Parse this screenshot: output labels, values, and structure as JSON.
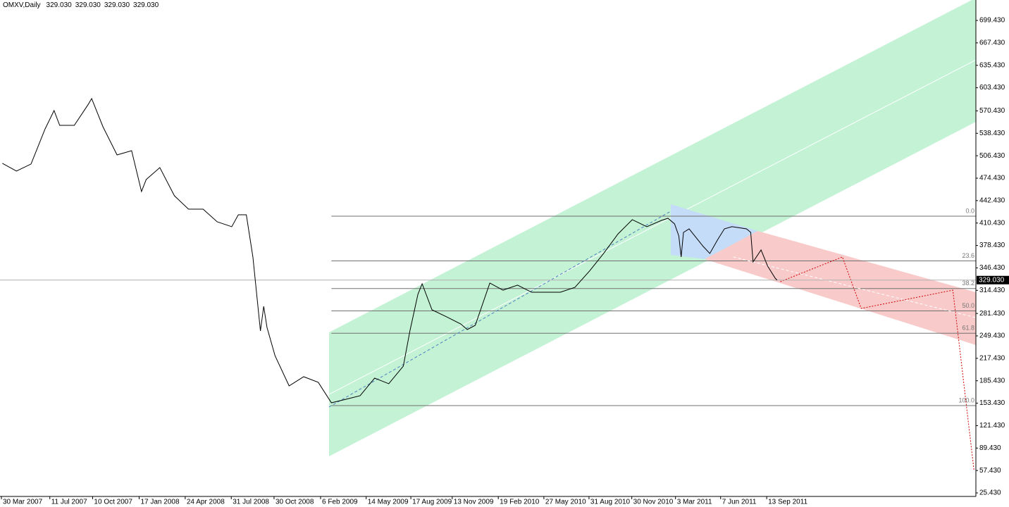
{
  "chart_data": {
    "type": "line",
    "title": "OMXV,Daily",
    "last_bar": [
      {
        "value": 329.03,
        "label": "329.030"
      },
      {
        "value": 329.03,
        "label": "329.030"
      },
      {
        "value": 329.03,
        "label": "329.030"
      },
      {
        "value": 329.03,
        "label": "329.030"
      }
    ],
    "current_price": {
      "value": 329.03,
      "label": "329.030"
    },
    "color": "#000000",
    "x": [
      "1 Apr 2007",
      "1 May 2007",
      "1 Jun 2007",
      "1 Jul 2007",
      "20 Jul 2007",
      "1 Aug 2007",
      "1 Sep 2007",
      "1 Oct 2007",
      "8 Oct 2007",
      "1 Nov 2007",
      "1 Dec 2007",
      "1 Jan 2008",
      "22 Jan 2008",
      "1 Feb 2008",
      "1 Mar 2008",
      "1 Apr 2008",
      "1 May 2008",
      "1 Jun 2008",
      "1 Jul 2008",
      "1 Aug 2008",
      "15 Aug 2008",
      "1 Sep 2008",
      "15 Sep 2008",
      "1 Oct 2008",
      "8 Oct 2008",
      "15 Oct 2008",
      "1 Nov 2008",
      "1 Dec 2008",
      "1 Jan 2009",
      "1 Feb 2009",
      "1 Mar 2009",
      "1 Apr 2009",
      "1 May 2009",
      "1 Jun 2009",
      "1 Jul 2009",
      "1 Aug 2009",
      "15 Aug 2009",
      "1 Sep 2009",
      "10 Sep 2009",
      "1 Oct 2009",
      "1 Nov 2009",
      "1 Dec 2009",
      "15 Dec 2009",
      "1 Jan 2010",
      "1 Feb 2010",
      "1 Mar 2010",
      "1 Apr 2010",
      "1 May 2010",
      "1 Jun 2010",
      "1 Jul 2010",
      "1 Aug 2010",
      "1 Sep 2010",
      "1 Oct 2010",
      "1 Nov 2010",
      "1 Dec 2010",
      "1 Jan 2011",
      "1 Feb 2011",
      "15 Feb 2011",
      "1 Mar 2011",
      "10 Mar 2011",
      "15 Mar 2011",
      "20 Mar 2011",
      "1 Apr 2011",
      "1 May 2011",
      "15 May 2011",
      "1 Jun 2011",
      "15 Jun 2011",
      "1 Jul 2011",
      "1 Aug 2011",
      "10 Aug 2011",
      "15 Aug 2011",
      "1 Sep 2011",
      "15 Sep 2011",
      "1 Oct 2011",
      "5 Oct 2011"
    ],
    "values": [
      495.6,
      484.5,
      494.6,
      544.8,
      570.9,
      549.8,
      549.8,
      580.0,
      588.0,
      547.8,
      507.6,
      513.6,
      455.4,
      472.5,
      489.5,
      449.3,
      430.3,
      430.3,
      412.2,
      405.2,
      422.2,
      422.2,
      362.0,
      256.5,
      291.6,
      261.5,
      221.3,
      178.1,
      191.2,
      183.2,
      154.0,
      159.0,
      164.1,
      189.2,
      181.2,
      206.3,
      256.5,
      308.7,
      323.8,
      286.6,
      276.6,
      266.5,
      258.5,
      264.5,
      324.8,
      314.7,
      321.8,
      311.7,
      311.7,
      311.7,
      318.7,
      341.9,
      367.0,
      395.1,
      415.2,
      405.2,
      414.2,
      417.2,
      409.2,
      392.1,
      362.0,
      397.1,
      402.1,
      377.0,
      367.0,
      387.1,
      402.1,
      405.2,
      402.1,
      397.1,
      355.0,
      372.0,
      349.0,
      331.8,
      329.03
    ],
    "xlim": [
      "27 Mar 2007",
      "1 Dec 2012"
    ],
    "xticks": [
      "30 Mar 2007",
      "11 Jul 2007",
      "10 Oct 2007",
      "17 Jan 2008",
      "24 Apr 2008",
      "31 Jul 2008",
      "30 Oct 2008",
      "6 Feb 2009",
      "14 May 2009",
      "17 Aug 2009",
      "13 Nov 2009",
      "19 Feb 2010",
      "27 May 2010",
      "31 Aug 2010",
      "30 Nov 2010",
      "3 Mar 2011",
      "7 Jun 2011",
      "13 Sep 2011"
    ],
    "ylim": [
      20.4,
      728.6
    ],
    "yticks": [
      {
        "value": 25.43,
        "label": "25.430"
      },
      {
        "value": 57.43,
        "label": "57.430"
      },
      {
        "value": 89.43,
        "label": "89.430"
      },
      {
        "value": 121.43,
        "label": "121.430"
      },
      {
        "value": 153.43,
        "label": "153.430"
      },
      {
        "value": 185.43,
        "label": "185.430"
      },
      {
        "value": 217.43,
        "label": "217.430"
      },
      {
        "value": 249.43,
        "label": "249.430"
      },
      {
        "value": 281.43,
        "label": "281.430"
      },
      {
        "value": 314.43,
        "label": "314.430"
      },
      {
        "value": 346.43,
        "label": "346.430"
      },
      {
        "value": 378.43,
        "label": "378.430"
      },
      {
        "value": 410.43,
        "label": "410.430"
      },
      {
        "value": 442.43,
        "label": "442.430"
      },
      {
        "value": 474.43,
        "label": "474.430"
      },
      {
        "value": 506.43,
        "label": "506.430"
      },
      {
        "value": 538.43,
        "label": "538.430"
      },
      {
        "value": 570.43,
        "label": "570.430"
      },
      {
        "value": 603.43,
        "label": "603.430"
      },
      {
        "value": 635.43,
        "label": "635.430"
      },
      {
        "value": 667.43,
        "label": "667.430"
      },
      {
        "value": 699.43,
        "label": "699.430"
      }
    ],
    "channels": [
      {
        "start": "24 Feb 2009",
        "end": "1 Dec 2012",
        "center": [
          166.1,
          643.2
        ],
        "half_width": 88.4,
        "color": "#c3f2d5",
        "center_color": "#ffffff"
      }
    ],
    "regions": [
      {
        "x": [
          "21 Feb 2011",
          "25 Aug 2011",
          "4 May 2011",
          "21 Feb 2011"
        ],
        "values": [
          437.3,
          399.1,
          358.9,
          365.0
        ],
        "color": "#c5dcf8"
      },
      {
        "x": [
          "4 May 2011",
          "25 Aug 2011",
          "1 Dec 2012",
          "1 Dec 2012"
        ],
        "values": [
          358.9,
          399.1,
          311.7,
          236.4
        ],
        "color": "#f8caca"
      }
    ],
    "lines": [
      {
        "x": [
          "24 Feb 2009",
          "21 Feb 2011"
        ],
        "values": [
          148.0,
          427.3
        ],
        "color": "#4f81bd",
        "dash": "dashed"
      },
      {
        "x": [
          "4 Jul 2011",
          "1 Dec 2012"
        ],
        "values": [
          362.0,
          275.5
        ],
        "color": "#ffffff",
        "dash": "dashed"
      },
      {
        "x": [
          "12 Oct 2011",
          "21 Feb 2012",
          "1 Apr 2012",
          "13 Oct 2012",
          "27 Nov 2012"
        ],
        "values": [
          326.8,
          362.0,
          288.6,
          314.7,
          57.6
        ],
        "color": "#d00000",
        "dash": "dotted"
      }
    ],
    "fibonacci": {
      "start": "1 Mar 2009",
      "high": 420.2,
      "low": 150.0,
      "color": "#707070",
      "levels": [
        {
          "value": 0,
          "label": "0.0"
        },
        23.6,
        38.2,
        {
          "value": 50,
          "label": "50.0"
        },
        61.8,
        {
          "value": 100,
          "label": "100.0"
        }
      ]
    }
  }
}
